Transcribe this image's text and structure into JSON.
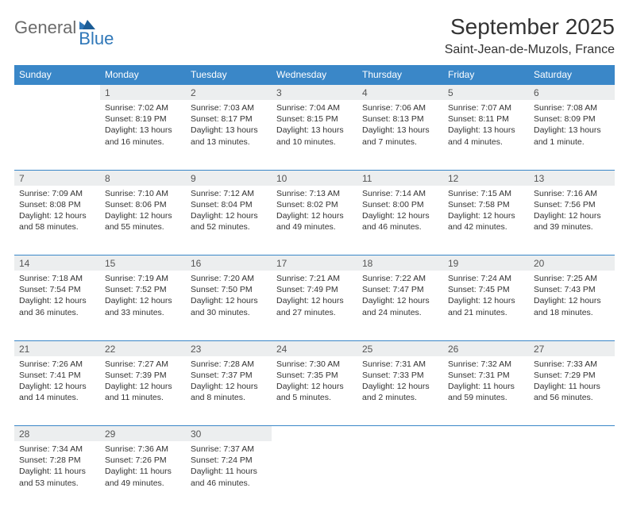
{
  "logo": {
    "part1": "General",
    "part2": "Blue"
  },
  "header": {
    "month_title": "September 2025",
    "location": "Saint-Jean-de-Muzols, France"
  },
  "colors": {
    "header_bg": "#3a87c8",
    "daynum_bg": "#eceeef",
    "row_border": "#3a87c8",
    "logo_gray": "#6b6b6b",
    "logo_blue": "#2f77b8"
  },
  "weekdays": [
    "Sunday",
    "Monday",
    "Tuesday",
    "Wednesday",
    "Thursday",
    "Friday",
    "Saturday"
  ],
  "weeks": [
    [
      null,
      {
        "n": "1",
        "sr": "7:02 AM",
        "ss": "8:19 PM",
        "dl": "13 hours and 16 minutes."
      },
      {
        "n": "2",
        "sr": "7:03 AM",
        "ss": "8:17 PM",
        "dl": "13 hours and 13 minutes."
      },
      {
        "n": "3",
        "sr": "7:04 AM",
        "ss": "8:15 PM",
        "dl": "13 hours and 10 minutes."
      },
      {
        "n": "4",
        "sr": "7:06 AM",
        "ss": "8:13 PM",
        "dl": "13 hours and 7 minutes."
      },
      {
        "n": "5",
        "sr": "7:07 AM",
        "ss": "8:11 PM",
        "dl": "13 hours and 4 minutes."
      },
      {
        "n": "6",
        "sr": "7:08 AM",
        "ss": "8:09 PM",
        "dl": "13 hours and 1 minute."
      }
    ],
    [
      {
        "n": "7",
        "sr": "7:09 AM",
        "ss": "8:08 PM",
        "dl": "12 hours and 58 minutes."
      },
      {
        "n": "8",
        "sr": "7:10 AM",
        "ss": "8:06 PM",
        "dl": "12 hours and 55 minutes."
      },
      {
        "n": "9",
        "sr": "7:12 AM",
        "ss": "8:04 PM",
        "dl": "12 hours and 52 minutes."
      },
      {
        "n": "10",
        "sr": "7:13 AM",
        "ss": "8:02 PM",
        "dl": "12 hours and 49 minutes."
      },
      {
        "n": "11",
        "sr": "7:14 AM",
        "ss": "8:00 PM",
        "dl": "12 hours and 46 minutes."
      },
      {
        "n": "12",
        "sr": "7:15 AM",
        "ss": "7:58 PM",
        "dl": "12 hours and 42 minutes."
      },
      {
        "n": "13",
        "sr": "7:16 AM",
        "ss": "7:56 PM",
        "dl": "12 hours and 39 minutes."
      }
    ],
    [
      {
        "n": "14",
        "sr": "7:18 AM",
        "ss": "7:54 PM",
        "dl": "12 hours and 36 minutes."
      },
      {
        "n": "15",
        "sr": "7:19 AM",
        "ss": "7:52 PM",
        "dl": "12 hours and 33 minutes."
      },
      {
        "n": "16",
        "sr": "7:20 AM",
        "ss": "7:50 PM",
        "dl": "12 hours and 30 minutes."
      },
      {
        "n": "17",
        "sr": "7:21 AM",
        "ss": "7:49 PM",
        "dl": "12 hours and 27 minutes."
      },
      {
        "n": "18",
        "sr": "7:22 AM",
        "ss": "7:47 PM",
        "dl": "12 hours and 24 minutes."
      },
      {
        "n": "19",
        "sr": "7:24 AM",
        "ss": "7:45 PM",
        "dl": "12 hours and 21 minutes."
      },
      {
        "n": "20",
        "sr": "7:25 AM",
        "ss": "7:43 PM",
        "dl": "12 hours and 18 minutes."
      }
    ],
    [
      {
        "n": "21",
        "sr": "7:26 AM",
        "ss": "7:41 PM",
        "dl": "12 hours and 14 minutes."
      },
      {
        "n": "22",
        "sr": "7:27 AM",
        "ss": "7:39 PM",
        "dl": "12 hours and 11 minutes."
      },
      {
        "n": "23",
        "sr": "7:28 AM",
        "ss": "7:37 PM",
        "dl": "12 hours and 8 minutes."
      },
      {
        "n": "24",
        "sr": "7:30 AM",
        "ss": "7:35 PM",
        "dl": "12 hours and 5 minutes."
      },
      {
        "n": "25",
        "sr": "7:31 AM",
        "ss": "7:33 PM",
        "dl": "12 hours and 2 minutes."
      },
      {
        "n": "26",
        "sr": "7:32 AM",
        "ss": "7:31 PM",
        "dl": "11 hours and 59 minutes."
      },
      {
        "n": "27",
        "sr": "7:33 AM",
        "ss": "7:29 PM",
        "dl": "11 hours and 56 minutes."
      }
    ],
    [
      {
        "n": "28",
        "sr": "7:34 AM",
        "ss": "7:28 PM",
        "dl": "11 hours and 53 minutes."
      },
      {
        "n": "29",
        "sr": "7:36 AM",
        "ss": "7:26 PM",
        "dl": "11 hours and 49 minutes."
      },
      {
        "n": "30",
        "sr": "7:37 AM",
        "ss": "7:24 PM",
        "dl": "11 hours and 46 minutes."
      },
      null,
      null,
      null,
      null
    ]
  ],
  "labels": {
    "sunrise": "Sunrise: ",
    "sunset": "Sunset: ",
    "daylight": "Daylight: "
  }
}
